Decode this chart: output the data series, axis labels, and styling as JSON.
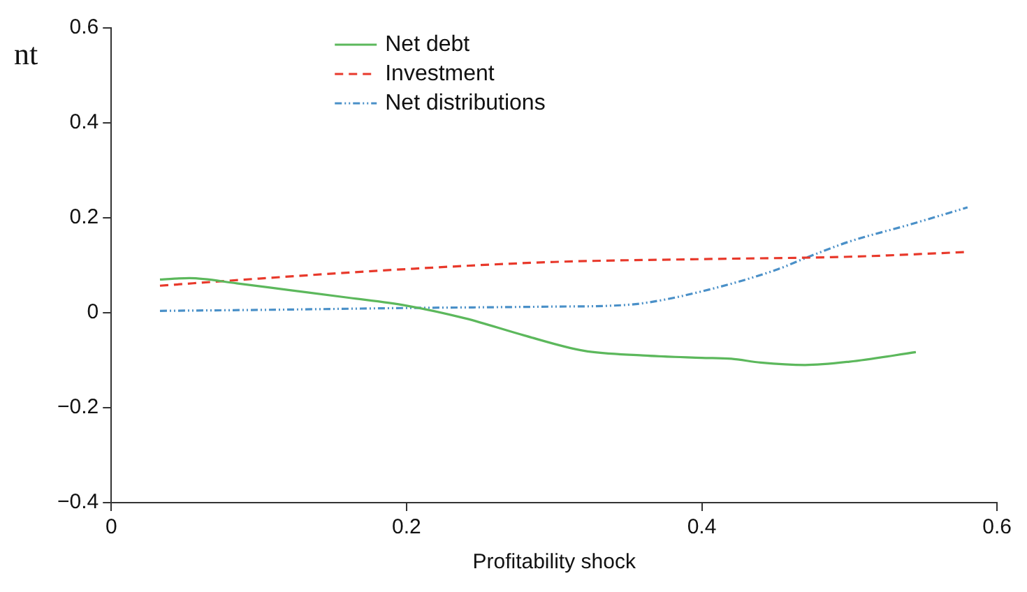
{
  "chart_data": {
    "type": "line",
    "ylabel": "nt",
    "xlabel": "Profitability shock",
    "xlim": [
      0,
      0.6
    ],
    "xticks": [
      0,
      0.2,
      0.4,
      0.6
    ],
    "ylim": [
      -0.4,
      0.6
    ],
    "yticks": [
      -0.4,
      -0.2,
      0,
      0.2,
      0.4,
      0.6
    ],
    "grid": false,
    "legend": "top left",
    "marker": "none",
    "series": [
      {
        "name": "Net debt",
        "color": "#5cb85c",
        "line_style": "solid",
        "x": [
          0.033,
          0.053,
          0.085,
          0.12,
          0.16,
          0.2,
          0.24,
          0.28,
          0.32,
          0.36,
          0.4,
          0.42,
          0.44,
          0.47,
          0.5,
          0.545
        ],
        "values": [
          0.07,
          0.073,
          0.062,
          0.048,
          0.032,
          0.015,
          -0.012,
          -0.048,
          -0.08,
          -0.09,
          -0.095,
          -0.097,
          -0.105,
          -0.11,
          -0.103,
          -0.083
        ]
      },
      {
        "name": "Investment",
        "color": "#e8392b",
        "line_style": "dashed",
        "x": [
          0.033,
          0.1,
          0.2,
          0.3,
          0.4,
          0.5,
          0.58
        ],
        "values": [
          0.057,
          0.072,
          0.092,
          0.107,
          0.113,
          0.118,
          0.128
        ]
      },
      {
        "name": "Net distributions",
        "color": "#4a90c8",
        "line_style": "dotted",
        "x": [
          0.033,
          0.1,
          0.2,
          0.3,
          0.34,
          0.36,
          0.4,
          0.45,
          0.47,
          0.5,
          0.54,
          0.58
        ],
        "values": [
          0.004,
          0.006,
          0.01,
          0.013,
          0.015,
          0.02,
          0.045,
          0.09,
          0.115,
          0.15,
          0.185,
          0.222
        ]
      }
    ]
  }
}
